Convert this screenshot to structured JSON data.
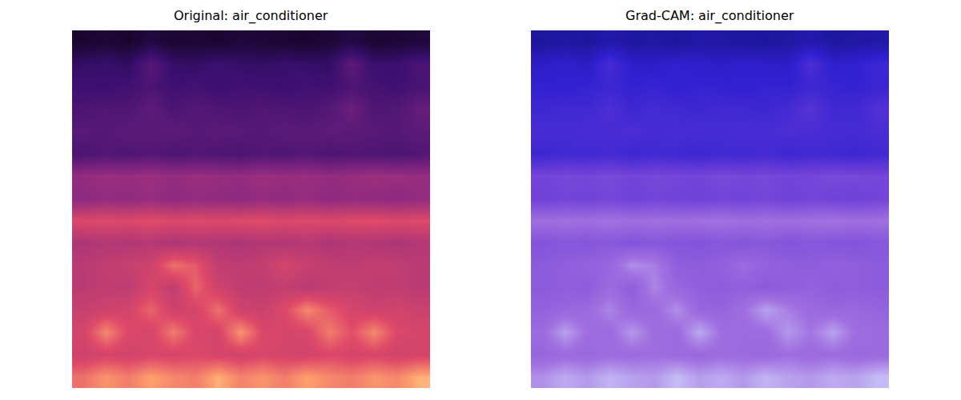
{
  "chart_data": [
    {
      "type": "heatmap",
      "title": "Original: air_conditioner",
      "tick_labels": false,
      "zlim": [
        0,
        1
      ],
      "cells": [
        [
          0.1,
          0.12,
          0.1,
          0.14,
          0.11,
          0.12,
          0.1,
          0.13,
          0.12,
          0.11,
          0.1,
          0.12,
          0.15,
          0.11,
          0.12,
          0.13
        ],
        [
          0.22,
          0.24,
          0.21,
          0.34,
          0.23,
          0.22,
          0.25,
          0.23,
          0.22,
          0.24,
          0.23,
          0.22,
          0.36,
          0.24,
          0.25,
          0.3
        ],
        [
          0.26,
          0.25,
          0.27,
          0.3,
          0.26,
          0.28,
          0.25,
          0.27,
          0.26,
          0.25,
          0.27,
          0.26,
          0.3,
          0.28,
          0.26,
          0.29
        ],
        [
          0.3,
          0.32,
          0.31,
          0.36,
          0.3,
          0.33,
          0.31,
          0.3,
          0.32,
          0.31,
          0.3,
          0.33,
          0.4,
          0.31,
          0.32,
          0.38
        ],
        [
          0.34,
          0.33,
          0.35,
          0.34,
          0.36,
          0.33,
          0.35,
          0.34,
          0.33,
          0.35,
          0.34,
          0.36,
          0.35,
          0.34,
          0.33,
          0.35
        ],
        [
          0.3,
          0.32,
          0.31,
          0.33,
          0.3,
          0.32,
          0.31,
          0.3,
          0.32,
          0.31,
          0.33,
          0.3,
          0.32,
          0.31,
          0.3,
          0.32
        ],
        [
          0.52,
          0.54,
          0.53,
          0.55,
          0.52,
          0.54,
          0.53,
          0.52,
          0.55,
          0.53,
          0.54,
          0.52,
          0.53,
          0.55,
          0.54,
          0.53
        ],
        [
          0.5,
          0.52,
          0.51,
          0.53,
          0.5,
          0.52,
          0.51,
          0.5,
          0.52,
          0.51,
          0.53,
          0.5,
          0.52,
          0.51,
          0.5,
          0.52
        ],
        [
          0.74,
          0.75,
          0.74,
          0.76,
          0.74,
          0.75,
          0.74,
          0.75,
          0.76,
          0.74,
          0.75,
          0.74,
          0.75,
          0.76,
          0.74,
          0.75
        ],
        [
          0.6,
          0.62,
          0.61,
          0.63,
          0.6,
          0.62,
          0.61,
          0.6,
          0.62,
          0.61,
          0.63,
          0.6,
          0.62,
          0.61,
          0.6,
          0.62
        ],
        [
          0.64,
          0.66,
          0.68,
          0.7,
          0.82,
          0.78,
          0.66,
          0.65,
          0.67,
          0.72,
          0.68,
          0.66,
          0.65,
          0.67,
          0.66,
          0.64
        ],
        [
          0.64,
          0.66,
          0.65,
          0.72,
          0.66,
          0.8,
          0.7,
          0.66,
          0.65,
          0.67,
          0.64,
          0.66,
          0.68,
          0.65,
          0.66,
          0.64
        ],
        [
          0.68,
          0.7,
          0.72,
          0.8,
          0.7,
          0.72,
          0.82,
          0.7,
          0.69,
          0.74,
          0.86,
          0.78,
          0.72,
          0.7,
          0.71,
          0.69
        ],
        [
          0.72,
          0.86,
          0.74,
          0.72,
          0.84,
          0.73,
          0.72,
          0.88,
          0.74,
          0.72,
          0.73,
          0.84,
          0.76,
          0.86,
          0.74,
          0.72
        ],
        [
          0.7,
          0.72,
          0.71,
          0.73,
          0.72,
          0.74,
          0.72,
          0.71,
          0.73,
          0.72,
          0.71,
          0.74,
          0.72,
          0.73,
          0.71,
          0.72
        ],
        [
          0.82,
          0.88,
          0.84,
          0.9,
          0.86,
          0.84,
          0.92,
          0.85,
          0.88,
          0.84,
          0.9,
          0.86,
          0.84,
          0.88,
          0.86,
          0.92
        ]
      ]
    },
    {
      "type": "heatmap",
      "title": "Grad-CAM: air_conditioner",
      "tick_labels": false,
      "zlim": [
        0,
        1
      ],
      "cells": [
        [
          0.1,
          0.12,
          0.1,
          0.14,
          0.11,
          0.12,
          0.1,
          0.13,
          0.12,
          0.11,
          0.1,
          0.12,
          0.15,
          0.11,
          0.12,
          0.13
        ],
        [
          0.22,
          0.24,
          0.21,
          0.34,
          0.23,
          0.22,
          0.25,
          0.23,
          0.22,
          0.24,
          0.23,
          0.22,
          0.36,
          0.24,
          0.25,
          0.3
        ],
        [
          0.26,
          0.25,
          0.27,
          0.3,
          0.26,
          0.28,
          0.25,
          0.27,
          0.26,
          0.25,
          0.27,
          0.26,
          0.3,
          0.28,
          0.26,
          0.29
        ],
        [
          0.3,
          0.32,
          0.31,
          0.36,
          0.3,
          0.33,
          0.31,
          0.3,
          0.32,
          0.31,
          0.3,
          0.33,
          0.4,
          0.31,
          0.32,
          0.38
        ],
        [
          0.34,
          0.33,
          0.35,
          0.34,
          0.36,
          0.33,
          0.35,
          0.34,
          0.33,
          0.35,
          0.34,
          0.36,
          0.35,
          0.34,
          0.33,
          0.35
        ],
        [
          0.3,
          0.32,
          0.31,
          0.33,
          0.3,
          0.32,
          0.31,
          0.3,
          0.32,
          0.31,
          0.33,
          0.3,
          0.32,
          0.31,
          0.3,
          0.32
        ],
        [
          0.52,
          0.54,
          0.53,
          0.55,
          0.52,
          0.54,
          0.53,
          0.52,
          0.55,
          0.53,
          0.54,
          0.52,
          0.53,
          0.55,
          0.54,
          0.53
        ],
        [
          0.5,
          0.52,
          0.51,
          0.53,
          0.5,
          0.52,
          0.51,
          0.5,
          0.52,
          0.51,
          0.53,
          0.5,
          0.52,
          0.51,
          0.5,
          0.52
        ],
        [
          0.74,
          0.75,
          0.74,
          0.76,
          0.74,
          0.75,
          0.74,
          0.75,
          0.76,
          0.74,
          0.75,
          0.74,
          0.75,
          0.76,
          0.74,
          0.75
        ],
        [
          0.6,
          0.62,
          0.61,
          0.63,
          0.6,
          0.62,
          0.61,
          0.6,
          0.62,
          0.61,
          0.63,
          0.6,
          0.62,
          0.61,
          0.6,
          0.62
        ],
        [
          0.64,
          0.66,
          0.68,
          0.7,
          0.82,
          0.78,
          0.66,
          0.65,
          0.67,
          0.72,
          0.68,
          0.66,
          0.65,
          0.67,
          0.66,
          0.64
        ],
        [
          0.64,
          0.66,
          0.65,
          0.72,
          0.66,
          0.8,
          0.7,
          0.66,
          0.65,
          0.67,
          0.64,
          0.66,
          0.68,
          0.65,
          0.66,
          0.64
        ],
        [
          0.68,
          0.7,
          0.72,
          0.8,
          0.7,
          0.72,
          0.82,
          0.7,
          0.69,
          0.74,
          0.86,
          0.78,
          0.72,
          0.7,
          0.71,
          0.69
        ],
        [
          0.72,
          0.86,
          0.74,
          0.72,
          0.84,
          0.73,
          0.72,
          0.88,
          0.74,
          0.72,
          0.73,
          0.84,
          0.76,
          0.86,
          0.74,
          0.72
        ],
        [
          0.7,
          0.72,
          0.71,
          0.73,
          0.72,
          0.74,
          0.72,
          0.71,
          0.73,
          0.72,
          0.71,
          0.74,
          0.72,
          0.73,
          0.71,
          0.72
        ],
        [
          0.82,
          0.88,
          0.84,
          0.9,
          0.86,
          0.84,
          0.92,
          0.85,
          0.88,
          0.84,
          0.9,
          0.86,
          0.84,
          0.88,
          0.86,
          0.92
        ]
      ]
    }
  ]
}
